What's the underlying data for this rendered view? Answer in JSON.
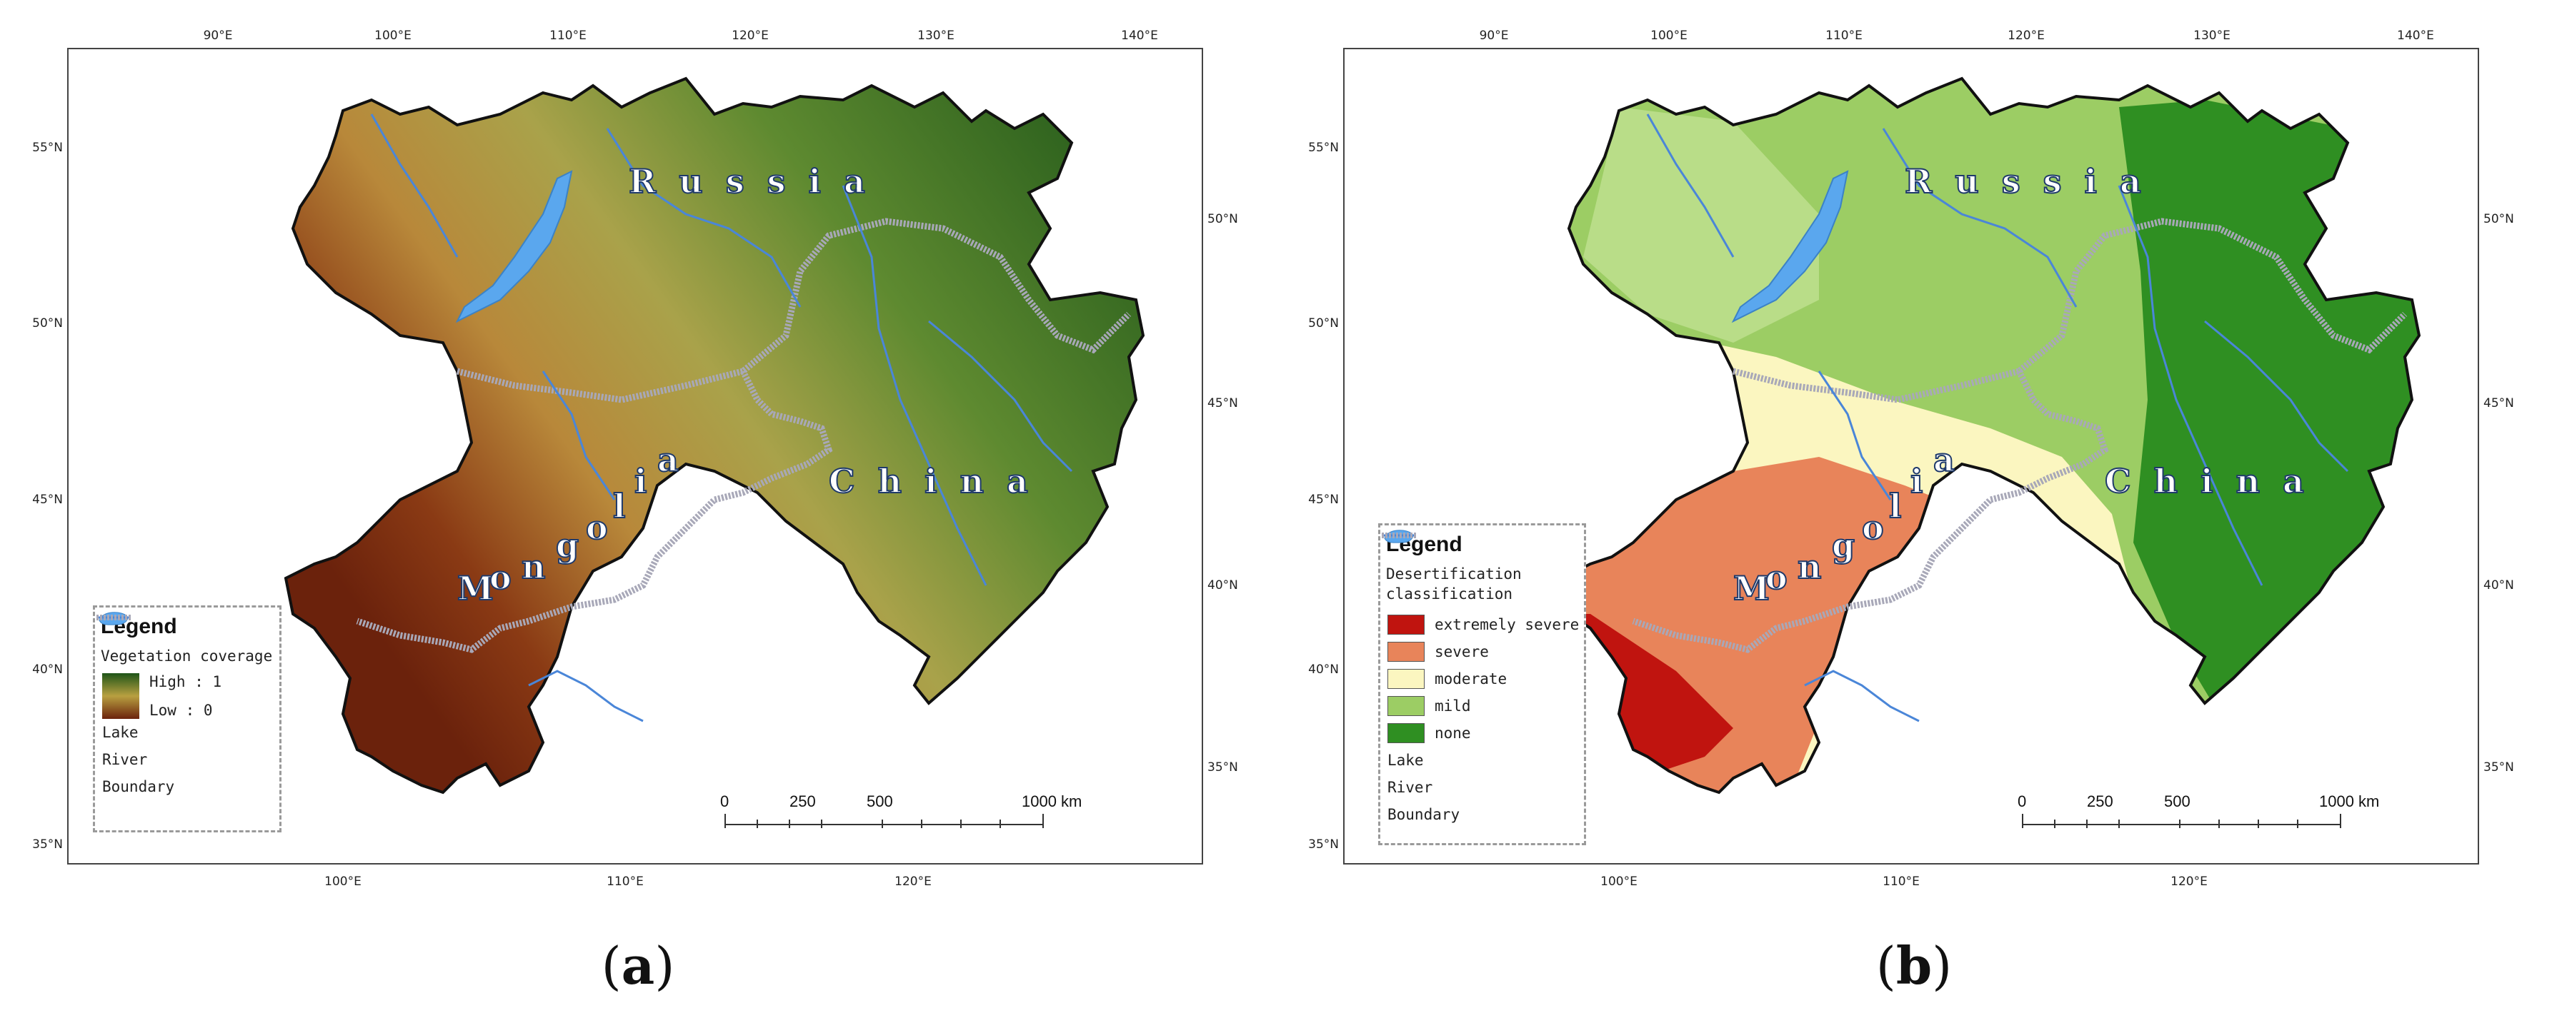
{
  "panels": [
    {
      "id": "a",
      "caption_letter": "a",
      "top_ticks": [
        "90°E",
        "100°E",
        "110°E",
        "120°E",
        "130°E",
        "140°E"
      ],
      "left_ticks": [
        "55°N",
        "50°N",
        "45°N",
        "40°N",
        "35°N"
      ],
      "right_ticks": [
        "50°N",
        "45°N",
        "40°N",
        "35°N"
      ],
      "bottom_ticks": [
        "100°E",
        "110°E",
        "120°E"
      ],
      "countries": {
        "russia": "R u s s i a",
        "china": "C h i n a",
        "mongolia": [
          "M",
          "o",
          "n",
          "g",
          "o",
          "l",
          "i",
          "a"
        ]
      },
      "legend": {
        "title": "Legend",
        "subtitle": "Vegetation coverage",
        "high_label": "High : 1",
        "low_label": "Low : 0",
        "lake": "Lake",
        "river": "River",
        "boundary": "Boundary"
      },
      "scale": {
        "labels": [
          "0",
          "250",
          "500",
          "1000 km"
        ]
      }
    },
    {
      "id": "b",
      "caption_letter": "b",
      "top_ticks": [
        "90°E",
        "100°E",
        "110°E",
        "120°E",
        "130°E",
        "140°E"
      ],
      "left_ticks": [
        "55°N",
        "50°N",
        "45°N",
        "40°N",
        "35°N"
      ],
      "right_ticks": [
        "50°N",
        "45°N",
        "40°N",
        "35°N"
      ],
      "bottom_ticks": [
        "100°E",
        "110°E",
        "120°E"
      ],
      "countries": {
        "russia": "R u s s i a",
        "china": "C h i n a",
        "mongolia": [
          "M",
          "o",
          "n",
          "g",
          "o",
          "l",
          "i",
          "a"
        ]
      },
      "legend": {
        "title": "Legend",
        "subtitle": "Desertification classification",
        "classes": [
          {
            "label": "extremely severe",
            "color": "#c0140f"
          },
          {
            "label": "severe",
            "color": "#e8845a"
          },
          {
            "label": "moderate",
            "color": "#fbf6c0"
          },
          {
            "label": "mild",
            "color": "#9ccd64"
          },
          {
            "label": "none",
            "color": "#2f8f22"
          }
        ],
        "lake": "Lake",
        "river": "River",
        "boundary": "Boundary"
      },
      "scale": {
        "labels": [
          "0",
          "250",
          "500",
          "1000 km"
        ]
      }
    }
  ],
  "colors": {
    "lake": "#5aa7ee",
    "river": "#4a86d8",
    "boundary": "#a8a8b8",
    "veg_high": "#1e5518",
    "veg_mid": "#a9a24a",
    "veg_low": "#6b220c"
  }
}
